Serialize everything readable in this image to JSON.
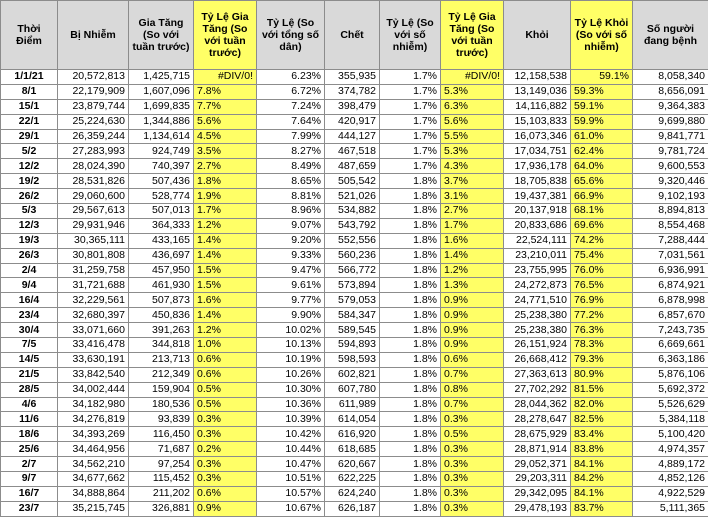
{
  "table": {
    "header": [
      "Thời Điểm",
      "Bị Nhiễm",
      "Gia Tăng (So với tuần trước)",
      "Tỷ Lệ Gia Tăng (So với tuần trước)",
      "Tỷ Lệ (So với tổng số dân)",
      "Chết",
      "Tỷ Lệ (So với số nhiễm)",
      "Tỷ Lệ Gia Tăng (So với tuần trước)",
      "Khỏi",
      "Tỷ Lệ Khỏi (So với số nhiễm)",
      "Số người đang bệnh"
    ],
    "rows": [
      [
        "1/1/21",
        "20,572,813",
        "1,425,715",
        "#DIV/0!",
        "6.23%",
        "355,935",
        "1.7%",
        "#DIV/0!",
        "12,158,538",
        "59.1%",
        "8,058,340"
      ],
      [
        "8/1",
        "22,179,909",
        "1,607,096",
        "7.8%",
        "6.72%",
        "374,782",
        "1.7%",
        "5.3%",
        "13,149,036",
        "59.3%",
        "8,656,091"
      ],
      [
        "15/1",
        "23,879,744",
        "1,699,835",
        "7.7%",
        "7.24%",
        "398,479",
        "1.7%",
        "6.3%",
        "14,116,882",
        "59.1%",
        "9,364,383"
      ],
      [
        "22/1",
        "25,224,630",
        "1,344,886",
        "5.6%",
        "7.64%",
        "420,917",
        "1.7%",
        "5.6%",
        "15,103,833",
        "59.9%",
        "9,699,880"
      ],
      [
        "29/1",
        "26,359,244",
        "1,134,614",
        "4.5%",
        "7.99%",
        "444,127",
        "1.7%",
        "5.5%",
        "16,073,346",
        "61.0%",
        "9,841,771"
      ],
      [
        "5/2",
        "27,283,993",
        "924,749",
        "3.5%",
        "8.27%",
        "467,518",
        "1.7%",
        "5.3%",
        "17,034,751",
        "62.4%",
        "9,781,724"
      ],
      [
        "12/2",
        "28,024,390",
        "740,397",
        "2.7%",
        "8.49%",
        "487,659",
        "1.7%",
        "4.3%",
        "17,936,178",
        "64.0%",
        "9,600,553"
      ],
      [
        "19/2",
        "28,531,826",
        "507,436",
        "1.8%",
        "8.65%",
        "505,542",
        "1.8%",
        "3.7%",
        "18,705,838",
        "65.6%",
        "9,320,446"
      ],
      [
        "26/2",
        "29,060,600",
        "528,774",
        "1.9%",
        "8.81%",
        "521,026",
        "1.8%",
        "3.1%",
        "19,437,381",
        "66.9%",
        "9,102,193"
      ],
      [
        "5/3",
        "29,567,613",
        "507,013",
        "1.7%",
        "8.96%",
        "534,882",
        "1.8%",
        "2.7%",
        "20,137,918",
        "68.1%",
        "8,894,813"
      ],
      [
        "12/3",
        "29,931,946",
        "364,333",
        "1.2%",
        "9.07%",
        "543,792",
        "1.8%",
        "1.7%",
        "20,833,686",
        "69.6%",
        "8,554,468"
      ],
      [
        "19/3",
        "30,365,111",
        "433,165",
        "1.4%",
        "9.20%",
        "552,556",
        "1.8%",
        "1.6%",
        "22,524,111",
        "74.2%",
        "7,288,444"
      ],
      [
        "26/3",
        "30,801,808",
        "436,697",
        "1.4%",
        "9.33%",
        "560,236",
        "1.8%",
        "1.4%",
        "23,210,011",
        "75.4%",
        "7,031,561"
      ],
      [
        "2/4",
        "31,259,758",
        "457,950",
        "1.5%",
        "9.47%",
        "566,772",
        "1.8%",
        "1.2%",
        "23,755,995",
        "76.0%",
        "6,936,991"
      ],
      [
        "9/4",
        "31,721,688",
        "461,930",
        "1.5%",
        "9.61%",
        "573,894",
        "1.8%",
        "1.3%",
        "24,272,873",
        "76.5%",
        "6,874,921"
      ],
      [
        "16/4",
        "32,229,561",
        "507,873",
        "1.6%",
        "9.77%",
        "579,053",
        "1.8%",
        "0.9%",
        "24,771,510",
        "76.9%",
        "6,878,998"
      ],
      [
        "23/4",
        "32,680,397",
        "450,836",
        "1.4%",
        "9.90%",
        "584,347",
        "1.8%",
        "0.9%",
        "25,238,380",
        "77.2%",
        "6,857,670"
      ],
      [
        "30/4",
        "33,071,660",
        "391,263",
        "1.2%",
        "10.02%",
        "589,545",
        "1.8%",
        "0.9%",
        "25,238,380",
        "76.3%",
        "7,243,735"
      ],
      [
        "7/5",
        "33,416,478",
        "344,818",
        "1.0%",
        "10.13%",
        "594,893",
        "1.8%",
        "0.9%",
        "26,151,924",
        "78.3%",
        "6,669,661"
      ],
      [
        "14/5",
        "33,630,191",
        "213,713",
        "0.6%",
        "10.19%",
        "598,593",
        "1.8%",
        "0.6%",
        "26,668,412",
        "79.3%",
        "6,363,186"
      ],
      [
        "21/5",
        "33,842,540",
        "212,349",
        "0.6%",
        "10.26%",
        "602,821",
        "1.8%",
        "0.7%",
        "27,363,613",
        "80.9%",
        "5,876,106"
      ],
      [
        "28/5",
        "34,002,444",
        "159,904",
        "0.5%",
        "10.30%",
        "607,780",
        "1.8%",
        "0.8%",
        "27,702,292",
        "81.5%",
        "5,692,372"
      ],
      [
        "4/6",
        "34,182,980",
        "180,536",
        "0.5%",
        "10.36%",
        "611,989",
        "1.8%",
        "0.7%",
        "28,044,362",
        "82.0%",
        "5,526,629"
      ],
      [
        "11/6",
        "34,276,819",
        "93,839",
        "0.3%",
        "10.39%",
        "614,054",
        "1.8%",
        "0.3%",
        "28,278,647",
        "82.5%",
        "5,384,118"
      ],
      [
        "18/6",
        "34,393,269",
        "116,450",
        "0.3%",
        "10.42%",
        "616,920",
        "1.8%",
        "0.5%",
        "28,675,929",
        "83.4%",
        "5,100,420"
      ],
      [
        "25/6",
        "34,464,956",
        "71,687",
        "0.2%",
        "10.44%",
        "618,685",
        "1.8%",
        "0.3%",
        "28,871,914",
        "83.8%",
        "4,974,357"
      ],
      [
        "2/7",
        "34,562,210",
        "97,254",
        "0.3%",
        "10.47%",
        "620,667",
        "1.8%",
        "0.3%",
        "29,052,371",
        "84.1%",
        "4,889,172"
      ],
      [
        "9/7",
        "34,677,662",
        "115,452",
        "0.3%",
        "10.51%",
        "622,225",
        "1.8%",
        "0.3%",
        "29,203,311",
        "84.2%",
        "4,852,126"
      ],
      [
        "16/7",
        "34,888,864",
        "211,202",
        "0.6%",
        "10.57%",
        "624,240",
        "1.8%",
        "0.3%",
        "29,342,095",
        "84.1%",
        "4,922,529"
      ],
      [
        "23/7",
        "35,215,745",
        "326,881",
        "0.9%",
        "10.67%",
        "626,187",
        "1.8%",
        "0.3%",
        "29,478,193",
        "83.7%",
        "5,111,365"
      ]
    ]
  }
}
